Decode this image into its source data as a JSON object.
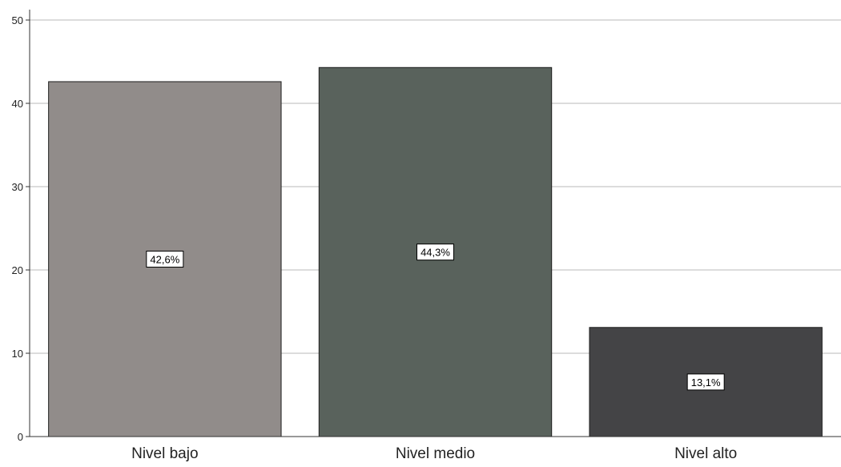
{
  "chart_data": {
    "type": "bar",
    "title": "",
    "xlabel": "",
    "ylabel": "",
    "ylim": [
      0,
      50
    ],
    "yticks": [
      0,
      10,
      20,
      30,
      40,
      50
    ],
    "grid": "horizontal",
    "categories": [
      "Nivel bajo",
      "Nivel medio",
      "Nivel alto"
    ],
    "values": [
      42.6,
      44.3,
      13.1
    ],
    "data_labels": [
      "42,6%",
      "44,3%",
      "13,1%"
    ],
    "colors": [
      "#918c8a",
      "#59625c",
      "#444446"
    ]
  }
}
